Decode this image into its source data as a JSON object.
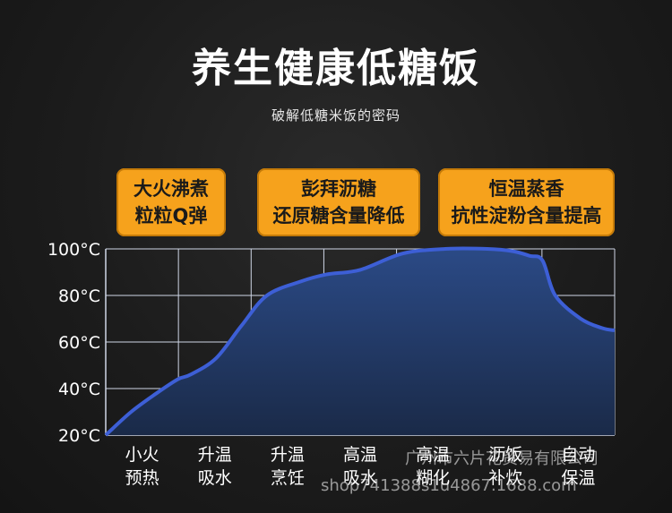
{
  "header": {
    "title": "养生健康低糖饭",
    "subtitle": "破解低糖米饭的密码"
  },
  "callouts": [
    {
      "line1": "大火沸煮",
      "line2": "粒粒Q弹"
    },
    {
      "line1": "彭拜沥糖",
      "line2": "还原糖含量降低"
    },
    {
      "line1": "恒温蒸香",
      "line2": "抗性淀粉含量提高"
    }
  ],
  "colors": {
    "callout_bg": "#f6a21c",
    "curve": "#3d5fd6",
    "fill_top": "#2b4a86",
    "fill_bottom": "#1a2a48",
    "grid": "#cfd6e6"
  },
  "chart_data": {
    "type": "area",
    "title": "",
    "xlabel": "",
    "ylabel": "",
    "y_unit": "°C",
    "ylim": [
      20,
      100
    ],
    "yticks": [
      "20°C",
      "40°C",
      "60°C",
      "80°C",
      "100°C"
    ],
    "grid": true,
    "stages": [
      [
        "小火",
        "预热"
      ],
      [
        "升温",
        "吸水"
      ],
      [
        "升温",
        "烹饪"
      ],
      [
        "高温",
        "吸水"
      ],
      [
        "高温",
        "糊化"
      ],
      [
        "沥饭",
        "补炊"
      ],
      [
        "自动",
        "保温"
      ]
    ],
    "series": [
      {
        "x": [
          0,
          0.3,
          0.6,
          0.85,
          1.0,
          1.3,
          1.6,
          1.9,
          2.3,
          2.6,
          3.0,
          3.5,
          4.0,
          4.5,
          4.8,
          5.0,
          5.15,
          5.3,
          5.6,
          5.85,
          6.0
        ],
        "y": [
          20,
          30,
          38,
          44,
          46,
          53,
          67,
          80,
          86,
          89,
          91,
          98,
          100,
          100,
          99,
          97,
          95,
          80,
          70,
          66,
          65
        ]
      }
    ]
  },
  "watermark": {
    "line1": "广州市六片花贸易有限公司",
    "line2": "shop741388s1u4867.1688.com"
  }
}
